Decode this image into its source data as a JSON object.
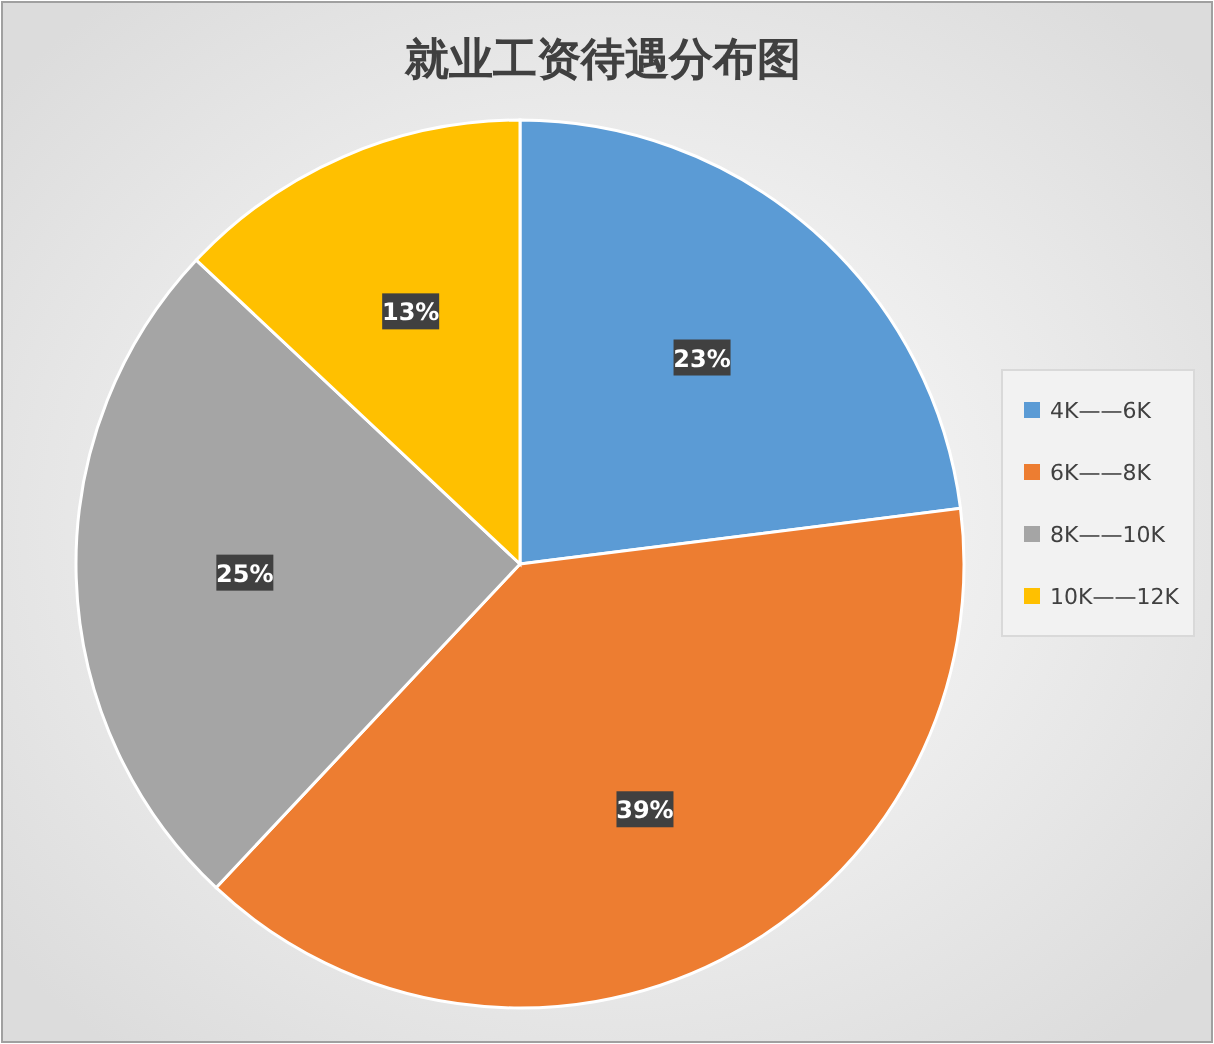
{
  "chart_data": {
    "type": "pie",
    "title": "就业工资待遇分布图",
    "categories": [
      "4K——6K",
      "6K——8K",
      "8K——10K",
      "10K——12K"
    ],
    "values": [
      23,
      39,
      25,
      13
    ],
    "colors": [
      "#5b9bd5",
      "#ed7d31",
      "#a5a5a5",
      "#ffc000"
    ],
    "value_labels": [
      "23%",
      "39%",
      "25%",
      "13%"
    ],
    "legend": "right"
  }
}
